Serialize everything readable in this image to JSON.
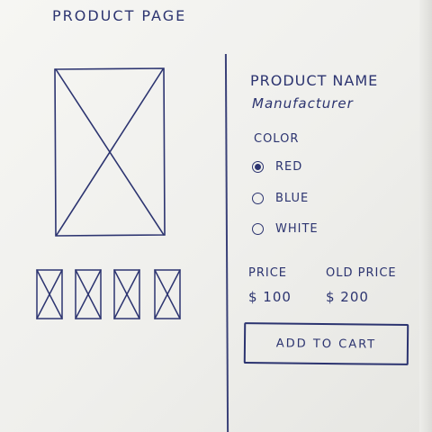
{
  "header": {
    "title": "PRODUCT PAGE"
  },
  "gallery": {
    "main_image": "image-placeholder-icon",
    "thumbnails": [
      "image-placeholder-icon",
      "image-placeholder-icon",
      "image-placeholder-icon",
      "image-placeholder-icon"
    ]
  },
  "product": {
    "name": "PRODUCT NAME",
    "manufacturer": "Manufacturer",
    "color_label": "COLOR",
    "colors": [
      {
        "label": "RED",
        "selected": true
      },
      {
        "label": "BLUE",
        "selected": false
      },
      {
        "label": "WHITE",
        "selected": false
      }
    ]
  },
  "pricing": {
    "price_label": "PRICE",
    "price": "$ 100",
    "old_price_label": "OLD PRICE",
    "old_price": "$ 200"
  },
  "actions": {
    "add_to_cart": "ADD TO CART"
  },
  "colors": {
    "ink": "#2c3470",
    "paper": "#f3f3f0"
  }
}
